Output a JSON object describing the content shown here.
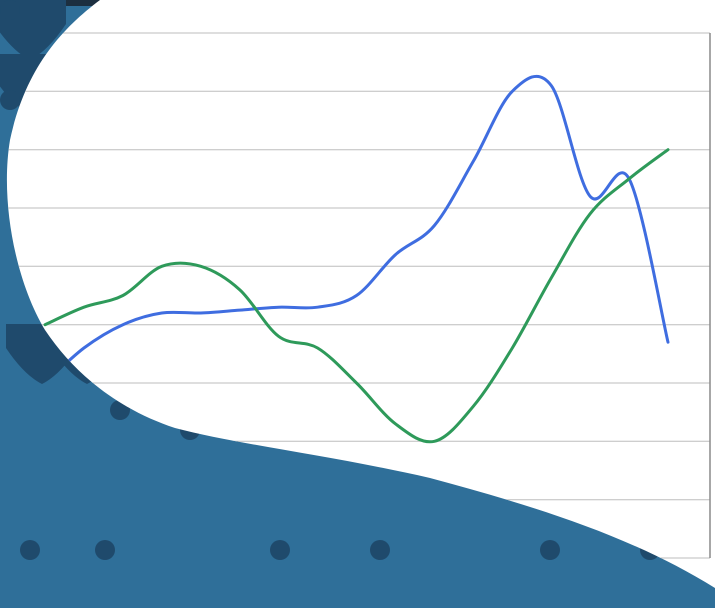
{
  "colors": {
    "background": "#2f6f99",
    "pattern": "#1f4a6c",
    "plot_area": "#ffffff",
    "gridline": "#bdbdbd",
    "frame": "#8a8a8a"
  },
  "chart_data": {
    "type": "line",
    "title": "",
    "xlabel": "",
    "ylabel": "",
    "x": [
      1,
      2,
      3,
      4,
      5,
      6,
      7,
      8,
      9,
      10,
      11,
      12,
      13,
      14,
      15,
      16,
      17
    ],
    "ylim": [
      0,
      9
    ],
    "grid": true,
    "legend": "none",
    "series": [
      {
        "color": "#3f6de0",
        "smooth": true,
        "values": [
          3.0,
          3.6,
          4.0,
          4.2,
          4.2,
          4.25,
          4.3,
          4.3,
          4.5,
          5.2,
          5.7,
          6.8,
          8.0,
          8.1,
          6.2,
          6.5,
          3.7
        ]
      },
      {
        "color": "#2e9a5a",
        "smooth": true,
        "values": [
          4.0,
          4.3,
          4.5,
          5.0,
          5.0,
          4.6,
          3.8,
          3.6,
          3.0,
          2.3,
          2.0,
          2.6,
          3.6,
          4.8,
          5.9,
          6.5,
          7.0
        ]
      }
    ]
  }
}
